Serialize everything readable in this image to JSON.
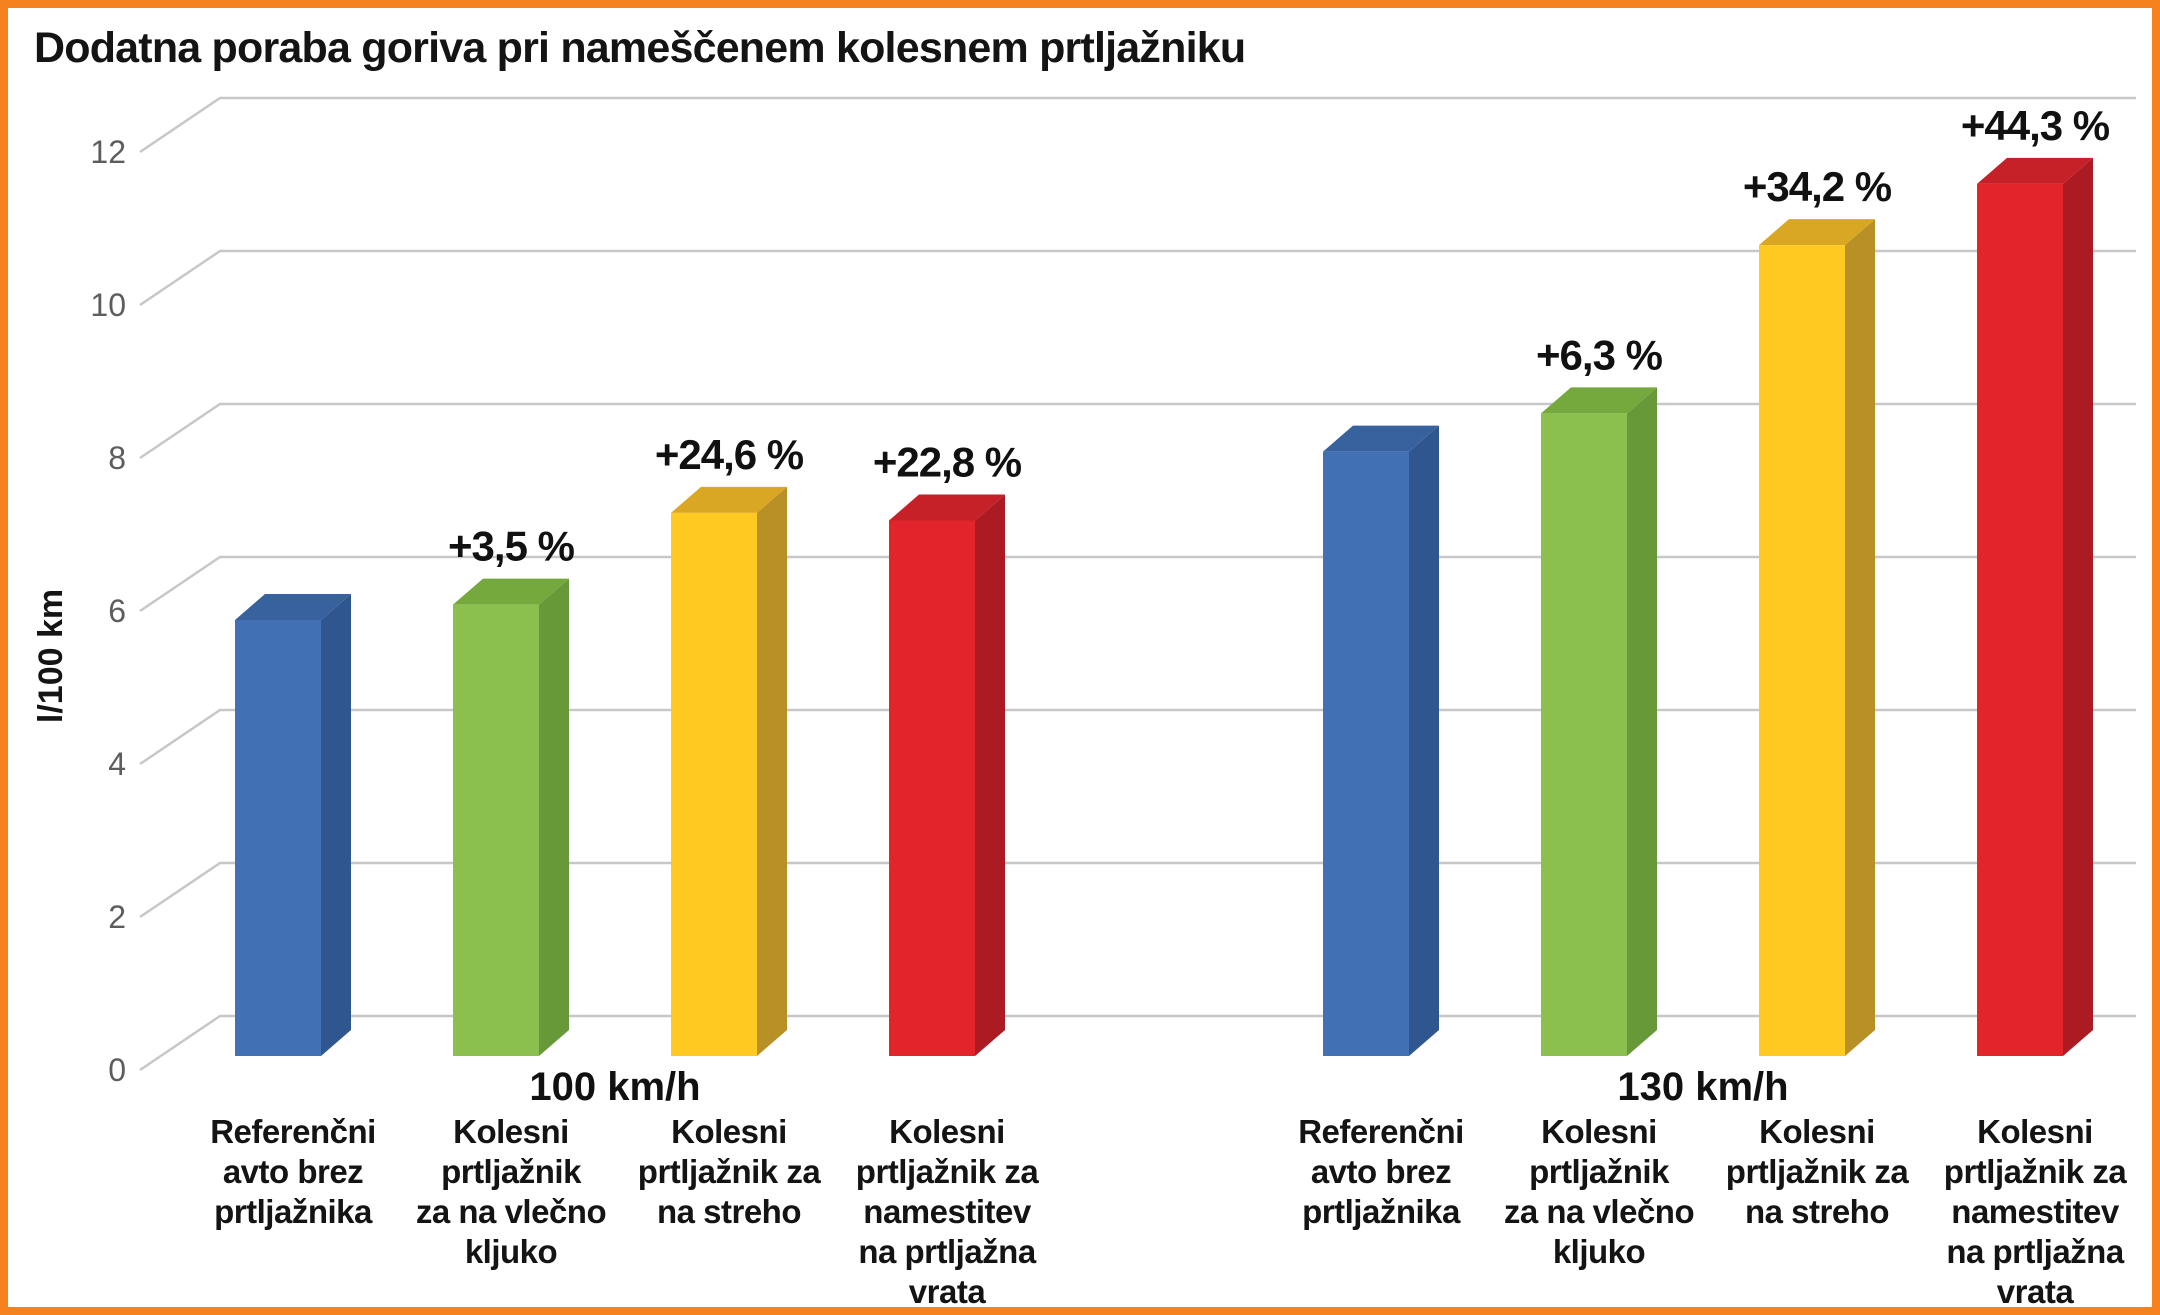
{
  "border_color": "#F5821E",
  "title": "Dodatna poraba goriva pri nameščenem kolesnem prtljažniku",
  "chart_data": {
    "type": "bar",
    "bar_style": "3d-columns",
    "title": "Dodatna poraba goriva pri nameščenem kolesnem prtljažniku",
    "xlabel": "",
    "ylabel": "l/100 km",
    "ylim": [
      0,
      12
    ],
    "yticks": [
      0,
      2,
      4,
      6,
      8,
      10,
      12
    ],
    "grid": true,
    "legend": false,
    "categories": [
      "Referenčni avto brez prtljažnika",
      "Kolesni prtljažnik za na vlečno kljuko",
      "Kolesni prtljažnik za na streho",
      "Kolesni prtljažnik za namestitev na prtljažna vrata"
    ],
    "category_lines": [
      [
        "Referenčni",
        "avto brez",
        "prtljažnika"
      ],
      [
        "Kolesni",
        "prtljažnik",
        "za na vlečno",
        "kljuko"
      ],
      [
        "Kolesni",
        "prtljažnik za",
        "na streho"
      ],
      [
        "Kolesni",
        "prtljažnik za",
        "namestitev",
        "na prtljažna",
        "vrata"
      ]
    ],
    "colors": [
      {
        "name": "blue-reference",
        "front": "#4170B4",
        "top": "#38629E",
        "side": "#2F568E"
      },
      {
        "name": "green-towbar",
        "front": "#8BC04E",
        "top": "#75A83D",
        "side": "#689939"
      },
      {
        "name": "yellow-roof",
        "front": "#FEC920",
        "top": "#D9A723",
        "side": "#B99026"
      },
      {
        "name": "red-tailgate",
        "front": "#E2242B",
        "top": "#C62028",
        "side": "#AC1B22"
      }
    ],
    "groups": [
      {
        "label": "100 km/h",
        "values": [
          5.7,
          5.9,
          7.1,
          7.0
        ],
        "percent_labels": [
          "",
          "+3,5 %",
          "+24,6 %",
          "+22,8 %"
        ]
      },
      {
        "label": "130 km/h",
        "values": [
          7.9,
          8.4,
          10.6,
          11.4
        ],
        "percent_labels": [
          "",
          "+6,3 %",
          "+34,2 %",
          "+44,3 %"
        ]
      }
    ]
  }
}
